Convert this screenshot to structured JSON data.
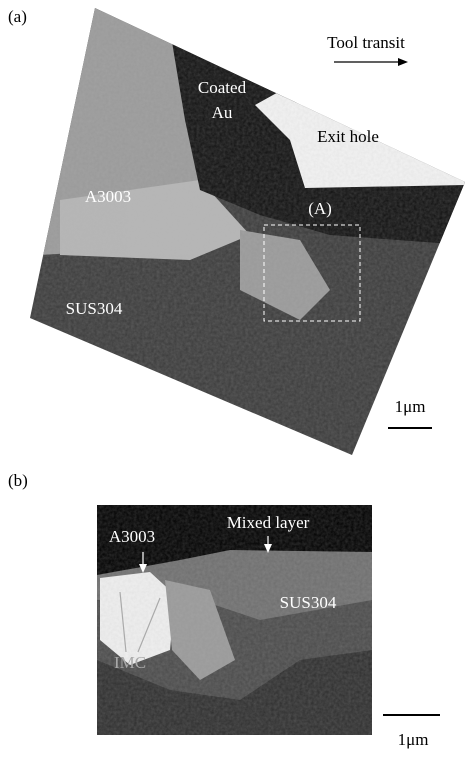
{
  "panel_a": {
    "label": "(a)",
    "tool_transit": "Tool transit",
    "coated_au": [
      "Coated",
      "Au"
    ],
    "exit_hole": "Exit hole",
    "a3003": "A3003",
    "region": "(A)",
    "sus304": "SUS304",
    "scale_bar": "1μm"
  },
  "panel_b": {
    "label": "(b)",
    "a3003": "A3003",
    "mixed_layer": "Mixed layer",
    "sus304": "SUS304",
    "imc": "IMC",
    "scale_bar": "1μm"
  }
}
